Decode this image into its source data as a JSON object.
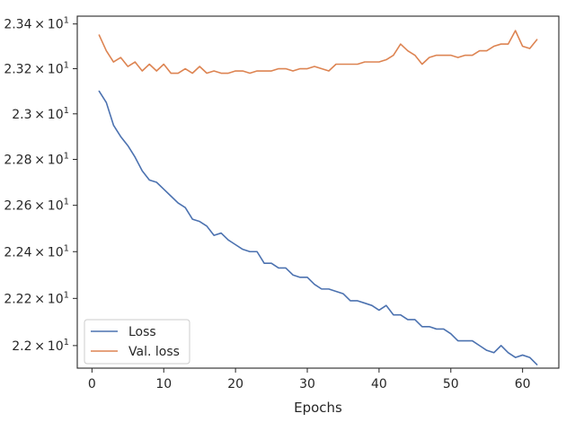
{
  "chart_data": {
    "type": "line",
    "title": "",
    "xlabel": "Epochs",
    "ylabel": "",
    "xlim": [
      -2.05,
      65.05
    ],
    "ylim": [
      21.905,
      23.435
    ],
    "y_scale": "log",
    "grid": false,
    "legend_position": "lower-left",
    "x_ticks": [
      {
        "value": 0,
        "label": "0"
      },
      {
        "value": 10,
        "label": "10"
      },
      {
        "value": 20,
        "label": "20"
      },
      {
        "value": 30,
        "label": "30"
      },
      {
        "value": 40,
        "label": "40"
      },
      {
        "value": 50,
        "label": "50"
      },
      {
        "value": 60,
        "label": "60"
      }
    ],
    "y_ticks": [
      {
        "value": 22.0,
        "base": "2.2",
        "exp": "1"
      },
      {
        "value": 22.2,
        "base": "2.22",
        "exp": "1"
      },
      {
        "value": 22.4,
        "base": "2.24",
        "exp": "1"
      },
      {
        "value": 22.6,
        "base": "2.26",
        "exp": "1"
      },
      {
        "value": 22.8,
        "base": "2.28",
        "exp": "1"
      },
      {
        "value": 23.0,
        "base": "2.3",
        "exp": "1"
      },
      {
        "value": 23.2,
        "base": "2.32",
        "exp": "1"
      },
      {
        "value": 23.4,
        "base": "2.34",
        "exp": "1"
      }
    ],
    "tick_times": "×",
    "tick_base": "10",
    "x": [
      1,
      2,
      3,
      4,
      5,
      6,
      7,
      8,
      9,
      10,
      11,
      12,
      13,
      14,
      15,
      16,
      17,
      18,
      19,
      20,
      21,
      22,
      23,
      24,
      25,
      26,
      27,
      28,
      29,
      30,
      31,
      32,
      33,
      34,
      35,
      36,
      37,
      38,
      39,
      40,
      41,
      42,
      43,
      44,
      45,
      46,
      47,
      48,
      49,
      50,
      51,
      52,
      53,
      54,
      55,
      56,
      57,
      58,
      59,
      60,
      61,
      62
    ],
    "series": [
      {
        "name": "Loss",
        "color": "#4c72b0",
        "values": [
          23.1,
          23.05,
          22.95,
          22.9,
          22.86,
          22.81,
          22.75,
          22.71,
          22.7,
          22.67,
          22.64,
          22.61,
          22.59,
          22.54,
          22.53,
          22.51,
          22.47,
          22.48,
          22.45,
          22.43,
          22.41,
          22.4,
          22.4,
          22.35,
          22.35,
          22.33,
          22.33,
          22.3,
          22.29,
          22.29,
          22.26,
          22.24,
          22.24,
          22.23,
          22.22,
          22.19,
          22.19,
          22.18,
          22.17,
          22.15,
          22.17,
          22.13,
          22.13,
          22.11,
          22.11,
          22.08,
          22.08,
          22.07,
          22.07,
          22.05,
          22.02,
          22.02,
          22.02,
          22.0,
          21.98,
          21.97,
          22.0,
          21.97,
          21.95,
          21.96,
          21.95,
          21.92
        ]
      },
      {
        "name": "Val. loss",
        "color": "#dd8452",
        "values": [
          23.35,
          23.28,
          23.23,
          23.25,
          23.21,
          23.23,
          23.19,
          23.22,
          23.19,
          23.22,
          23.18,
          23.18,
          23.2,
          23.18,
          23.21,
          23.18,
          23.19,
          23.18,
          23.18,
          23.19,
          23.19,
          23.18,
          23.19,
          23.19,
          23.19,
          23.2,
          23.2,
          23.19,
          23.2,
          23.2,
          23.21,
          23.2,
          23.19,
          23.22,
          23.22,
          23.22,
          23.22,
          23.23,
          23.23,
          23.23,
          23.24,
          23.26,
          23.31,
          23.28,
          23.26,
          23.22,
          23.25,
          23.26,
          23.26,
          23.26,
          23.25,
          23.26,
          23.26,
          23.28,
          23.28,
          23.3,
          23.31,
          23.31,
          23.37,
          23.3,
          23.29,
          23.33
        ]
      }
    ]
  }
}
